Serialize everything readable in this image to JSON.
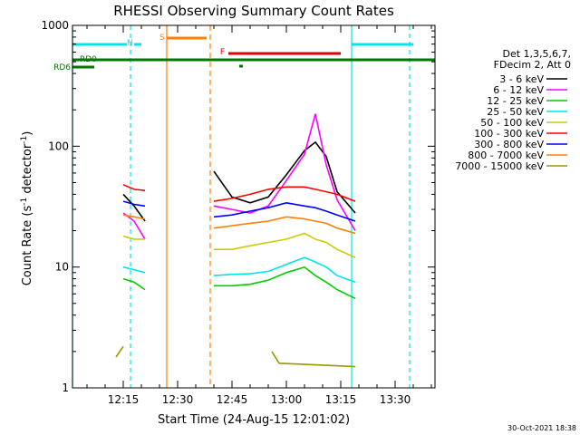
{
  "chart_data": {
    "type": "line",
    "title": "RHESSI Observing Summary Count Rates",
    "xlabel": "Start Time (24-Aug-15 12:01:02)",
    "ylabel_main": "Count Rate (s",
    "ylabel_sup": "-1",
    "ylabel_tail": " detector",
    "ylabel_close": ")",
    "yscale": "log",
    "ylim": [
      1,
      1000
    ],
    "xlim": [
      "12:01",
      "13:41"
    ],
    "x_ticks": [
      "12:15",
      "12:30",
      "12:45",
      "13:00",
      "13:15",
      "13:30"
    ],
    "y_ticks": [
      "1",
      "10",
      "100",
      "1000"
    ],
    "legend_header": [
      "Det 1,3,5,6,7,",
      "FDecim 2, Att 0"
    ],
    "timestamp": "30-Oct-2021 18:38",
    "flags": {
      "N": "N",
      "S": "S",
      "F": "F",
      "RD0": "RD0",
      "RD6": "RD6"
    },
    "series": [
      {
        "name": "3 - 6 keV",
        "color": "#000000",
        "points": [
          [
            "12:15",
            40
          ],
          [
            "12:18",
            32
          ],
          [
            "12:21",
            24
          ],
          [
            "12:40",
            62
          ],
          [
            "12:45",
            38
          ],
          [
            "12:50",
            34
          ],
          [
            "12:55",
            38
          ],
          [
            "13:00",
            58
          ],
          [
            "13:05",
            92
          ],
          [
            "13:08",
            108
          ],
          [
            "13:11",
            82
          ],
          [
            "13:14",
            42
          ],
          [
            "13:19",
            28
          ]
        ]
      },
      {
        "name": "6 - 12 keV",
        "color": "#ff00ff",
        "points": [
          [
            "12:15",
            28
          ],
          [
            "12:18",
            24
          ],
          [
            "12:21",
            17
          ],
          [
            "12:40",
            32
          ],
          [
            "12:45",
            30
          ],
          [
            "12:50",
            28
          ],
          [
            "12:55",
            32
          ],
          [
            "13:00",
            52
          ],
          [
            "13:05",
            86
          ],
          [
            "13:08",
            185
          ],
          [
            "13:11",
            70
          ],
          [
            "13:14",
            36
          ],
          [
            "13:19",
            20
          ]
        ]
      },
      {
        "name": "12 - 25 keV",
        "color": "#00cc00",
        "points": [
          [
            "12:15",
            8
          ],
          [
            "12:18",
            7.5
          ],
          [
            "12:21",
            6.5
          ],
          [
            "12:40",
            7
          ],
          [
            "12:45",
            7
          ],
          [
            "12:50",
            7.2
          ],
          [
            "12:55",
            7.8
          ],
          [
            "13:00",
            9
          ],
          [
            "13:05",
            10
          ],
          [
            "13:08",
            8.5
          ],
          [
            "13:11",
            7.5
          ],
          [
            "13:14",
            6.5
          ],
          [
            "13:19",
            5.5
          ]
        ]
      },
      {
        "name": "25 - 50 keV",
        "color": "#00e5e5",
        "points": [
          [
            "12:15",
            10
          ],
          [
            "12:18",
            9.5
          ],
          [
            "12:21",
            9
          ],
          [
            "12:40",
            8.5
          ],
          [
            "12:45",
            8.7
          ],
          [
            "12:50",
            8.8
          ],
          [
            "12:55",
            9.2
          ],
          [
            "13:00",
            10.5
          ],
          [
            "13:05",
            12
          ],
          [
            "13:08",
            11
          ],
          [
            "13:11",
            10
          ],
          [
            "13:14",
            8.5
          ],
          [
            "13:19",
            7.5
          ]
        ]
      },
      {
        "name": "50 - 100 keV",
        "color": "#cccc00",
        "points": [
          [
            "12:15",
            18
          ],
          [
            "12:18",
            17
          ],
          [
            "12:21",
            17
          ],
          [
            "12:40",
            14
          ],
          [
            "12:45",
            14
          ],
          [
            "12:50",
            15
          ],
          [
            "12:55",
            16
          ],
          [
            "13:00",
            17
          ],
          [
            "13:05",
            19
          ],
          [
            "13:08",
            17
          ],
          [
            "13:11",
            16
          ],
          [
            "13:14",
            14
          ],
          [
            "13:19",
            12
          ]
        ]
      },
      {
        "name": "100 - 300 keV",
        "color": "#ff0000",
        "points": [
          [
            "12:15",
            48
          ],
          [
            "12:18",
            44
          ],
          [
            "12:21",
            43
          ],
          [
            "12:40",
            35
          ],
          [
            "12:45",
            37
          ],
          [
            "12:50",
            40
          ],
          [
            "12:55",
            44
          ],
          [
            "13:00",
            46
          ],
          [
            "13:05",
            46
          ],
          [
            "13:08",
            44
          ],
          [
            "13:11",
            42
          ],
          [
            "13:14",
            40
          ],
          [
            "13:19",
            35
          ]
        ]
      },
      {
        "name": "300 - 800 keV",
        "color": "#0000ff",
        "points": [
          [
            "12:15",
            35
          ],
          [
            "12:18",
            33
          ],
          [
            "12:21",
            32
          ],
          [
            "12:40",
            26
          ],
          [
            "12:45",
            27
          ],
          [
            "12:50",
            29
          ],
          [
            "12:55",
            31
          ],
          [
            "13:00",
            34
          ],
          [
            "13:05",
            32
          ],
          [
            "13:08",
            31
          ],
          [
            "13:11",
            29
          ],
          [
            "13:14",
            27
          ],
          [
            "13:19",
            24
          ]
        ]
      },
      {
        "name": "800 - 7000 keV",
        "color": "#ff8000",
        "points": [
          [
            "12:15",
            27
          ],
          [
            "12:18",
            26
          ],
          [
            "12:21",
            25
          ],
          [
            "12:40",
            21
          ],
          [
            "12:45",
            22
          ],
          [
            "12:50",
            23
          ],
          [
            "12:55",
            24
          ],
          [
            "13:00",
            26
          ],
          [
            "13:05",
            25
          ],
          [
            "13:08",
            24
          ],
          [
            "13:11",
            23
          ],
          [
            "13:14",
            21
          ],
          [
            "13:19",
            19
          ]
        ]
      },
      {
        "name": "7000 - 15000 keV",
        "color": "#999900",
        "points": [
          [
            "12:13",
            1.8
          ],
          [
            "12:15",
            2.2
          ],
          [
            "12:56",
            2
          ],
          [
            "12:58",
            1.6
          ],
          [
            "13:19",
            1.5
          ]
        ]
      }
    ]
  }
}
